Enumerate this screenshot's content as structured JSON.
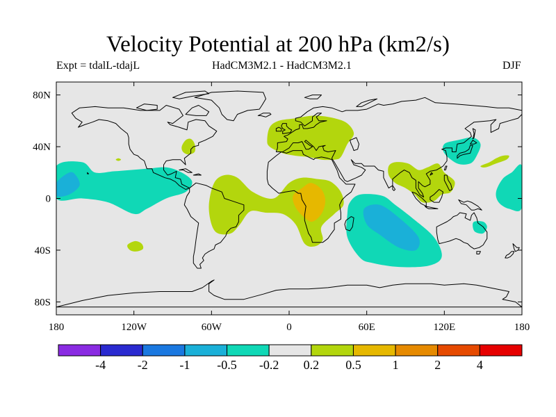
{
  "title": "Velocity Potential at 200 hPa (km2/s)",
  "subtitle": {
    "left": "Expt = tdalL-tdajL",
    "center": "HadCM3M2.1 - HadCM3M2.1",
    "right": "DJF"
  },
  "map": {
    "lon_range": [
      -180,
      180
    ],
    "lat_range": [
      -90,
      90
    ],
    "background_color": "#e6e6e6",
    "x_ticks": [
      {
        "lon": -180,
        "label": "180"
      },
      {
        "lon": -120,
        "label": "120W"
      },
      {
        "lon": -60,
        "label": "60W"
      },
      {
        "lon": 0,
        "label": "0"
      },
      {
        "lon": 60,
        "label": "60E"
      },
      {
        "lon": 120,
        "label": "120E"
      },
      {
        "lon": 180,
        "label": "180"
      }
    ],
    "y_ticks": [
      {
        "lat": 80,
        "label": "80N"
      },
      {
        "lat": 40,
        "label": "40N"
      },
      {
        "lat": 0,
        "label": "0"
      },
      {
        "lat": -40,
        "label": "40S"
      },
      {
        "lat": -80,
        "label": "80S"
      }
    ],
    "anomaly_regions": [
      {
        "name": "eurasia-positive",
        "level": "0.2 to 0.5",
        "color": "#b3d60d",
        "outline": [
          [
            -17,
            45
          ],
          [
            -15,
            55
          ],
          [
            -8,
            60
          ],
          [
            5,
            62
          ],
          [
            20,
            64
          ],
          [
            35,
            62
          ],
          [
            45,
            58
          ],
          [
            50,
            50
          ],
          [
            45,
            42
          ],
          [
            40,
            32
          ],
          [
            35,
            30
          ],
          [
            25,
            30
          ],
          [
            15,
            32
          ],
          [
            5,
            33
          ],
          [
            -5,
            35
          ],
          [
            -15,
            40
          ]
        ]
      },
      {
        "name": "east-asia-positive",
        "level": "0.2 to 0.5",
        "color": "#b3d60d",
        "outline": [
          [
            77,
            25
          ],
          [
            82,
            28
          ],
          [
            92,
            27
          ],
          [
            100,
            22
          ],
          [
            107,
            24
          ],
          [
            115,
            27
          ],
          [
            120,
            20
          ],
          [
            128,
            13
          ],
          [
            125,
            5
          ],
          [
            118,
            3
          ],
          [
            112,
            -2
          ],
          [
            103,
            -3
          ],
          [
            97,
            3
          ],
          [
            90,
            8
          ],
          [
            82,
            12
          ],
          [
            77,
            18
          ]
        ]
      },
      {
        "name": "north-america-positive",
        "level": "0.2 to 0.5",
        "color": "#b3d60d",
        "outline": [
          [
            -83,
            40
          ],
          [
            -80,
            45
          ],
          [
            -76,
            46
          ],
          [
            -73,
            42
          ],
          [
            -73,
            36
          ],
          [
            -78,
            34
          ],
          [
            -82,
            36
          ]
        ]
      },
      {
        "name": "south-atlantic-africa-positive",
        "level": "0.2 to 0.5",
        "color": "#b3d60d",
        "outline": [
          [
            -58,
            12
          ],
          [
            -50,
            18
          ],
          [
            -40,
            16
          ],
          [
            -28,
            5
          ],
          [
            -12,
            0
          ],
          [
            0,
            12
          ],
          [
            10,
            16
          ],
          [
            22,
            15
          ],
          [
            32,
            13
          ],
          [
            40,
            5
          ],
          [
            42,
            -5
          ],
          [
            35,
            -12
          ],
          [
            25,
            -22
          ],
          [
            26,
            -32
          ],
          [
            20,
            -37
          ],
          [
            12,
            -35
          ],
          [
            5,
            -20
          ],
          [
            -5,
            -12
          ],
          [
            -18,
            -11
          ],
          [
            -30,
            -10
          ],
          [
            -38,
            -20
          ],
          [
            -45,
            -27
          ],
          [
            -55,
            -27
          ],
          [
            -60,
            -20
          ],
          [
            -62,
            -5
          ]
        ]
      },
      {
        "name": "africa-strong-positive",
        "level": "0.5 to 1",
        "color": "#e6b800",
        "outline": [
          [
            3,
            2
          ],
          [
            10,
            8
          ],
          [
            17,
            12
          ],
          [
            25,
            7
          ],
          [
            28,
            -2
          ],
          [
            25,
            -12
          ],
          [
            18,
            -18
          ],
          [
            12,
            -15
          ],
          [
            5,
            -7
          ]
        ]
      },
      {
        "name": "pacific-positive",
        "level": "0.2 to 0.5",
        "color": "#b3d60d",
        "outline": [
          [
            -125,
            -36
          ],
          [
            -123,
            -40
          ],
          [
            -118,
            -41
          ],
          [
            -113,
            -39
          ],
          [
            -114,
            -35
          ],
          [
            -119,
            -33
          ]
        ]
      },
      {
        "name": "central-pacific-positive",
        "level": "0.2 to 0.5",
        "color": "#b3d60d",
        "outline": [
          [
            -134,
            30
          ],
          [
            -132,
            31
          ],
          [
            -130,
            30
          ],
          [
            -132,
            29
          ]
        ]
      },
      {
        "name": "northwest-pacific-positive",
        "level": "0.2 to 0.5",
        "color": "#b3d60d",
        "outline": [
          [
            148,
            25
          ],
          [
            155,
            28
          ],
          [
            160,
            31
          ],
          [
            165,
            33
          ],
          [
            170,
            33
          ],
          [
            168,
            30
          ],
          [
            160,
            27
          ],
          [
            152,
            24
          ]
        ]
      },
      {
        "name": "indian-ocean-negative",
        "level": "-0.5 to -0.2",
        "color": "#10d8b6",
        "outline": [
          [
            47,
            -3
          ],
          [
            55,
            3
          ],
          [
            72,
            2
          ],
          [
            82,
            -5
          ],
          [
            95,
            -15
          ],
          [
            112,
            -30
          ],
          [
            118,
            -45
          ],
          [
            108,
            -52
          ],
          [
            85,
            -53
          ],
          [
            65,
            -50
          ],
          [
            55,
            -46
          ],
          [
            45,
            -30
          ],
          [
            45,
            -12
          ]
        ]
      },
      {
        "name": "indian-ocean-strong-negative",
        "level": "-1 to -0.5",
        "color": "#1ab0d8",
        "outline": [
          [
            58,
            -8
          ],
          [
            70,
            -5
          ],
          [
            85,
            -15
          ],
          [
            100,
            -30
          ],
          [
            98,
            -40
          ],
          [
            85,
            -38
          ],
          [
            70,
            -28
          ],
          [
            60,
            -20
          ]
        ]
      },
      {
        "name": "tropical-pacific-negative",
        "level": "-0.5 to -0.2",
        "color": "#10d8b6",
        "outline": [
          [
            -180,
            25
          ],
          [
            -160,
            28
          ],
          [
            -150,
            20
          ],
          [
            -135,
            21
          ],
          [
            -110,
            23
          ],
          [
            -95,
            24
          ],
          [
            -83,
            20
          ],
          [
            -75,
            13
          ],
          [
            -80,
            5
          ],
          [
            -95,
            0
          ],
          [
            -110,
            -8
          ],
          [
            -120,
            -12
          ],
          [
            -140,
            -3
          ],
          [
            -160,
            0
          ],
          [
            -180,
            0
          ]
        ]
      },
      {
        "name": "tropical-pacific-strong-negative",
        "level": "-1 to -0.5",
        "color": "#1ab0d8",
        "outline": [
          [
            -180,
            12
          ],
          [
            -170,
            20
          ],
          [
            -165,
            18
          ],
          [
            -162,
            10
          ],
          [
            -170,
            3
          ],
          [
            -180,
            2
          ]
        ]
      },
      {
        "name": "east-asia-negative",
        "level": "-0.5 to -0.2",
        "color": "#10d8b6",
        "outline": [
          [
            120,
            42
          ],
          [
            130,
            45
          ],
          [
            142,
            47
          ],
          [
            148,
            42
          ],
          [
            145,
            33
          ],
          [
            140,
            27
          ],
          [
            130,
            27
          ],
          [
            120,
            35
          ]
        ]
      },
      {
        "name": "west-pacific-negative",
        "level": "-0.5 to -0.2",
        "color": "#10d8b6",
        "outline": [
          [
            160,
            5
          ],
          [
            165,
            15
          ],
          [
            172,
            20
          ],
          [
            180,
            25
          ],
          [
            180,
            -7
          ],
          [
            170,
            -8
          ],
          [
            162,
            -3
          ]
        ]
      },
      {
        "name": "australia-negative",
        "level": "-0.5 to -0.2",
        "color": "#10d8b6",
        "outline": [
          [
            143,
            -18
          ],
          [
            150,
            -18
          ],
          [
            153,
            -22
          ],
          [
            150,
            -27
          ],
          [
            144,
            -26
          ],
          [
            142,
            -22
          ]
        ]
      }
    ]
  },
  "colorbar": {
    "colors": [
      "#8a2be2",
      "#2a2ad0",
      "#1a78e0",
      "#1ab0d8",
      "#10d8b6",
      "#e6e6e6",
      "#b3d60d",
      "#e6b800",
      "#e68a00",
      "#e64a00",
      "#e60000"
    ],
    "labels": [
      "-4",
      "-2",
      "-1",
      "-0.5",
      "-0.2",
      "0.2",
      "0.5",
      "1",
      "2",
      "4"
    ]
  }
}
